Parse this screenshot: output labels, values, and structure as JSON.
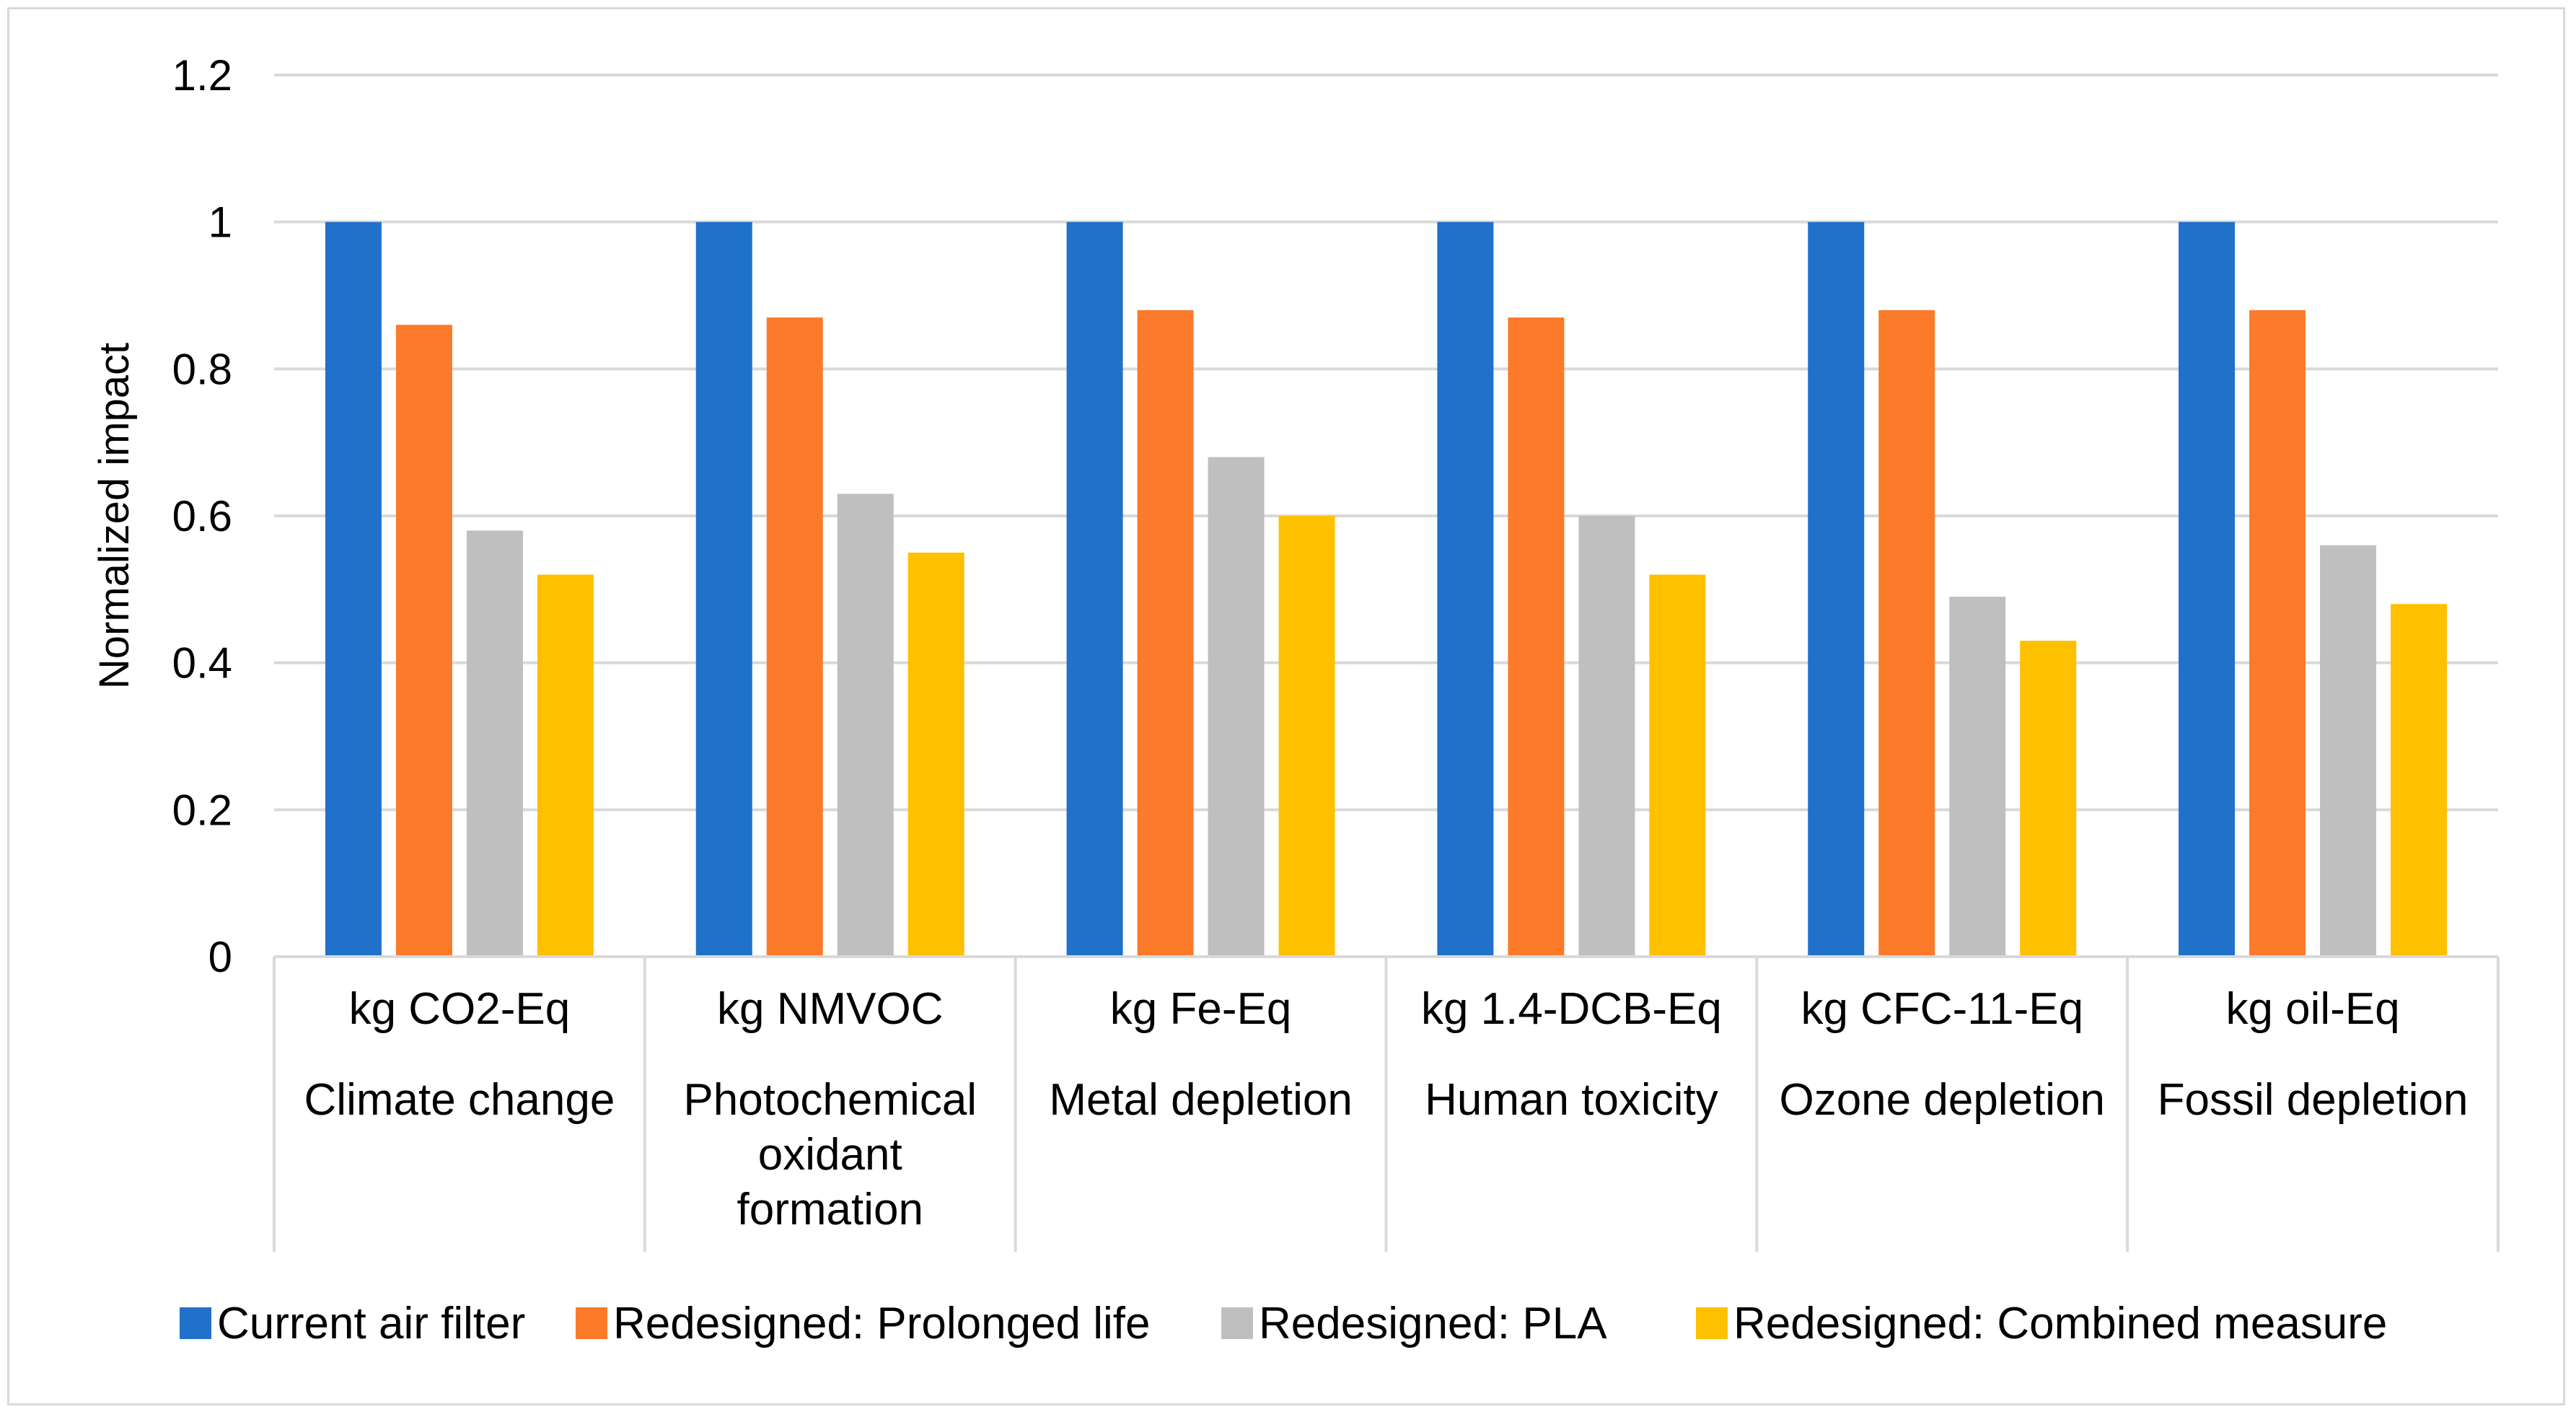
{
  "chart_data": {
    "type": "bar",
    "title": "",
    "xlabel": "",
    "ylabel": "Normalized impact",
    "ylim": [
      0,
      1.2
    ],
    "yticks": [
      "0",
      "0.2",
      "0.4",
      "0.6",
      "0.8",
      "1",
      "1.2"
    ],
    "ytick_values": [
      0,
      0.2,
      0.4,
      0.6,
      0.8,
      1.0,
      1.2
    ],
    "grid": true,
    "legend_position": "bottom",
    "categories": [
      {
        "unit": "kg CO2-Eq",
        "name": [
          "Climate change"
        ]
      },
      {
        "unit": "kg NMVOC",
        "name": [
          "Photochemical",
          "oxidant",
          "formation"
        ]
      },
      {
        "unit": "kg Fe-Eq",
        "name": [
          "Metal depletion"
        ]
      },
      {
        "unit": "kg 1.4-DCB-Eq",
        "name": [
          "Human toxicity"
        ]
      },
      {
        "unit": "kg CFC-11-Eq",
        "name": [
          "Ozone depletion"
        ]
      },
      {
        "unit": "kg oil-Eq",
        "name": [
          "Fossil depletion"
        ]
      }
    ],
    "series": [
      {
        "name": "Current air filter",
        "color": "#1f71c9",
        "values": [
          1.0,
          1.0,
          1.0,
          1.0,
          1.0,
          1.0
        ]
      },
      {
        "name": "Redesigned: Prolonged life",
        "color": "#fb7b2a",
        "values": [
          0.86,
          0.87,
          0.88,
          0.87,
          0.88,
          0.88
        ]
      },
      {
        "name": "Redesigned: PLA",
        "color": "#bfbfbf",
        "values": [
          0.58,
          0.63,
          0.68,
          0.6,
          0.49,
          0.56
        ]
      },
      {
        "name": "Redesigned: Combined measure",
        "color": "#ffc000",
        "values": [
          0.52,
          0.55,
          0.6,
          0.52,
          0.43,
          0.48
        ]
      }
    ]
  }
}
